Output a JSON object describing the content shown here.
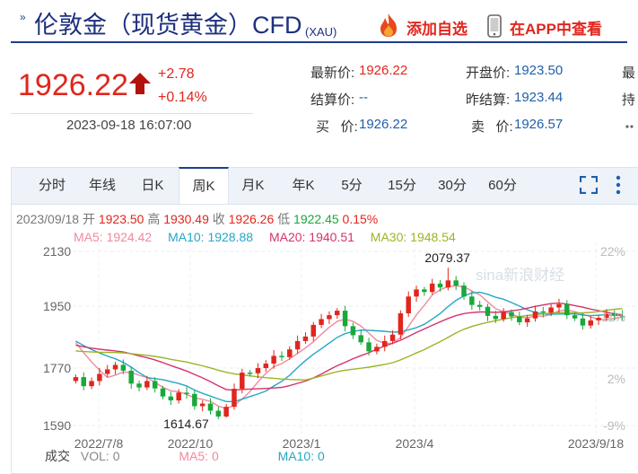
{
  "header": {
    "title_icon": "»",
    "title": "伦敦金（现货黄金）CFD",
    "title_sub": "(XAU)",
    "favorite_label": "添加自选",
    "app_label": "在APP中查看"
  },
  "quote": {
    "price": "1926.22",
    "change": "+2.78",
    "change_pct": "+0.14%",
    "time": "2023-09-18 16:07:00",
    "fields": [
      {
        "label": "最新价:",
        "value": "1926.22",
        "color": "#e0261d"
      },
      {
        "label": "开盘价:",
        "value": "1923.50",
        "color": "#1f5faa"
      },
      {
        "label": "最",
        "value": ""
      },
      {
        "label": "结算价:",
        "value": "--",
        "color": "#1f5faa"
      },
      {
        "label": "昨结算:",
        "value": "1923.44",
        "color": "#1f5faa"
      },
      {
        "label": "持",
        "value": ""
      },
      {
        "label": "买   价:",
        "value": "1926.22",
        "color": "#1f5faa"
      },
      {
        "label": "卖   价:",
        "value": "1926.57",
        "color": "#1f5faa"
      }
    ]
  },
  "tabs": [
    "分时",
    "年线",
    "日K",
    "周K",
    "月K",
    "年K",
    "5分",
    "15分",
    "30分",
    "60分"
  ],
  "active_tab": "周K",
  "ohlc": {
    "date": "2023/09/18",
    "open_label": "开",
    "open": "1923.50",
    "high_label": "高",
    "high": "1930.49",
    "close_label": "收",
    "close": "1926.26",
    "low_label": "低",
    "low": "1922.45",
    "pct": "0.15%"
  },
  "ma": [
    {
      "label": "MA5:",
      "value": "1924.42",
      "color": "#f08a9c"
    },
    {
      "label": "MA10:",
      "value": "1928.88",
      "color": "#25a7c5"
    },
    {
      "label": "MA20:",
      "value": "1940.51",
      "color": "#d6336c"
    },
    {
      "label": "MA30:",
      "value": "1948.54",
      "color": "#9bb528"
    }
  ],
  "volume": {
    "label": "成交",
    "vol_label": "VOL:",
    "vol": "0",
    "ma5_label": "MA5:",
    "ma5": "0",
    "ma10_label": "MA10:",
    "ma10": "0"
  },
  "watermark": "sina新浪财经",
  "chart_data": {
    "type": "candlestick",
    "y_ticks": [
      "2130",
      "1950",
      "1770",
      "1590"
    ],
    "pct_ticks": [
      "22%",
      "11%",
      "2%",
      "-9%"
    ],
    "x_ticks": [
      "2022/7/8",
      "2022/10",
      "2023/1",
      "2023/4",
      "2023/9/18"
    ],
    "annotations": [
      {
        "label": "2079.37",
        "value": 2079.37
      },
      {
        "label": "1614.67",
        "value": 1614.67
      }
    ],
    "ylim": [
      1590,
      2130
    ],
    "closes": [
      1740,
      1712,
      1728,
      1750,
      1764,
      1778,
      1760,
      1720,
      1708,
      1728,
      1705,
      1680,
      1668,
      1692,
      1688,
      1650,
      1658,
      1636,
      1618,
      1648,
      1704,
      1754,
      1752,
      1768,
      1782,
      1806,
      1802,
      1826,
      1852,
      1866,
      1902,
      1920,
      1932,
      1946,
      1898,
      1870,
      1848,
      1820,
      1834,
      1852,
      1872,
      1938,
      1990,
      2012,
      2004,
      2030,
      2018,
      2040,
      2024,
      1990,
      1964,
      1958,
      1930,
      1920,
      1942,
      1928,
      1910,
      1922,
      1944,
      1940,
      1956,
      1966,
      1932,
      1922,
      1900,
      1916,
      1924,
      1936,
      1930,
      1926
    ],
    "colors": {
      "up": "#e0261d",
      "down": "#19a83a"
    },
    "ma_colors": {
      "ma5": "#f08a9c",
      "ma10": "#25a7c5",
      "ma20": "#d6336c",
      "ma30": "#9bb528"
    }
  }
}
